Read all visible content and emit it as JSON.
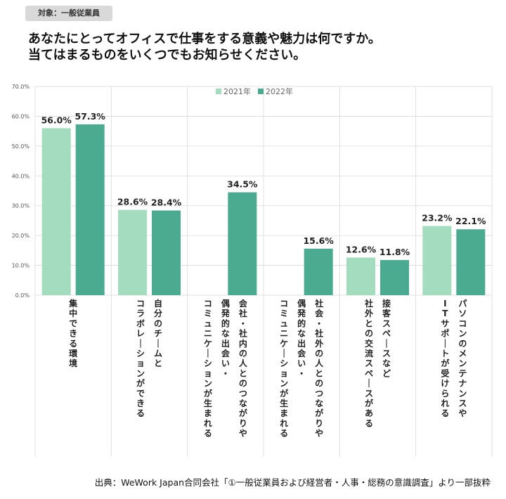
{
  "header": {
    "tag": "対象：一般従業員",
    "title_lines": [
      "あなたにとってオフィスで仕事をする意義や魅力は何ですか。",
      "当てはまるものをいくつでもお知らせください。"
    ]
  },
  "source": "出典：WeWork Japan合同会社「①一般従業員および経営者・人事・総務の意識調査」より一部抜粋",
  "colors": {
    "series_2021": "#a3dcbe",
    "series_2022": "#4aab91",
    "grid": "#d9d9d9"
  },
  "chart_data": {
    "type": "bar",
    "ylim": [
      0,
      70
    ],
    "yticks": [
      "0.0%",
      "10.0%",
      "20.0%",
      "30.0%",
      "40.0%",
      "50.0%",
      "60.0%",
      "70.0%"
    ],
    "legend": {
      "position": "top-center",
      "entries": [
        "2021年",
        "2022年"
      ]
    },
    "categories": [
      [
        "集中できる環境"
      ],
      [
        "自分のチームと",
        "コラボレーションができる"
      ],
      [
        "会社・社内の人とのつながりや",
        "偶発的な出会い・",
        "コミュニケーションが生まれる"
      ],
      [
        "社会・社外の人とのつながりや",
        "偶発的な出会い・",
        "コミュニケーションが生まれる"
      ],
      [
        "接客スペースなど",
        "社外との交流スペースがある"
      ],
      [
        "パソコンのメンテナンスや",
        "ITサポートが受けられる"
      ]
    ],
    "series": [
      {
        "name": "2021年",
        "values": [
          56.0,
          28.6,
          null,
          null,
          12.6,
          23.2
        ],
        "labels": [
          "56.0%",
          "28.6%",
          "",
          "",
          "12.6%",
          "23.2%"
        ]
      },
      {
        "name": "2022年",
        "values": [
          57.3,
          28.4,
          34.5,
          15.6,
          11.8,
          22.1
        ],
        "labels": [
          "57.3%",
          "28.4%",
          "34.5%",
          "15.6%",
          "11.8%",
          "22.1%"
        ]
      }
    ]
  }
}
